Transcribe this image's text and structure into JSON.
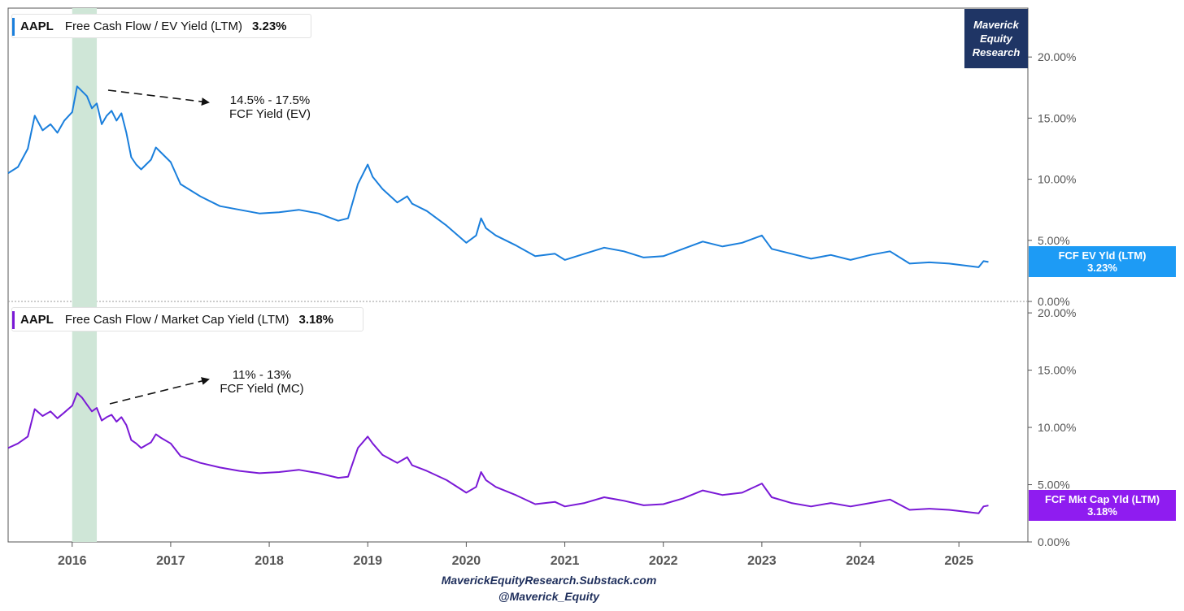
{
  "branding": {
    "line1": "Maverick",
    "line2": "Equity",
    "line3": "Research",
    "footer_site": "MaverickEquityResearch.Substack.com",
    "footer_handle": "@Maverick_Equity"
  },
  "colors": {
    "ev": "#1a7fdc",
    "mc": "#7a19d6",
    "highlight": "#cfe6d7",
    "brand": "#1f3565",
    "axis_text": "#555555"
  },
  "chart_data": [
    {
      "type": "line",
      "ticker": "AAPL",
      "title": "Free Cash Flow / EV Yield (LTM)",
      "last_value_label": "3.23%",
      "tag_name": "FCF EV Yld (LTM)",
      "tag_value": "3.23%",
      "annotation_line1": "14.5% - 17.5%",
      "annotation_line2": "FCF Yield (EV)",
      "ylim": [
        0,
        24
      ],
      "yticks": [
        0,
        5,
        10,
        15,
        20
      ],
      "ytick_labels": [
        "0.00%",
        "5.00%",
        "10.00%",
        "15.00%",
        "20.00%"
      ],
      "xlim": [
        2015.35,
        2025.7
      ],
      "highlight_range": [
        2016.0,
        2016.25
      ],
      "last_value": 3.23,
      "series": [
        {
          "x": [
            2015.35,
            2015.45,
            2015.55,
            2015.62,
            2015.7,
            2015.78,
            2015.85,
            2015.92,
            2016.0,
            2016.05,
            2016.1,
            2016.15,
            2016.2,
            2016.25,
            2016.3,
            2016.35,
            2016.4,
            2016.45,
            2016.5,
            2016.55,
            2016.6,
            2016.65,
            2016.7,
            2016.8,
            2016.85,
            2016.9,
            2017.0,
            2017.1,
            2017.3,
            2017.5,
            2017.7,
            2017.9,
            2018.1,
            2018.3,
            2018.5,
            2018.7,
            2018.8,
            2018.9,
            2019.0,
            2019.05,
            2019.15,
            2019.3,
            2019.4,
            2019.45,
            2019.6,
            2019.8,
            2020.0,
            2020.1,
            2020.15,
            2020.2,
            2020.3,
            2020.5,
            2020.7,
            2020.9,
            2021.0,
            2021.2,
            2021.4,
            2021.6,
            2021.8,
            2022.0,
            2022.2,
            2022.4,
            2022.6,
            2022.8,
            2023.0,
            2023.1,
            2023.3,
            2023.5,
            2023.7,
            2023.9,
            2024.1,
            2024.3,
            2024.5,
            2024.7,
            2024.9,
            2025.0,
            2025.1,
            2025.2,
            2025.25,
            2025.3
          ],
          "y": [
            10.5,
            11.0,
            12.5,
            15.2,
            14.0,
            14.5,
            13.8,
            14.8,
            15.5,
            17.6,
            17.2,
            16.8,
            15.8,
            16.2,
            14.5,
            15.2,
            15.6,
            14.8,
            15.4,
            13.8,
            11.8,
            11.2,
            10.8,
            11.6,
            12.6,
            12.2,
            11.4,
            9.6,
            8.6,
            7.8,
            7.5,
            7.2,
            7.3,
            7.5,
            7.2,
            6.6,
            6.8,
            9.6,
            11.2,
            10.2,
            9.2,
            8.1,
            8.6,
            8.0,
            7.4,
            6.2,
            4.8,
            5.4,
            6.8,
            6.0,
            5.4,
            4.6,
            3.7,
            3.9,
            3.4,
            3.9,
            4.4,
            4.1,
            3.6,
            3.7,
            4.3,
            4.9,
            4.5,
            4.8,
            5.4,
            4.3,
            3.9,
            3.5,
            3.8,
            3.4,
            3.8,
            4.1,
            3.1,
            3.2,
            3.1,
            3.0,
            2.9,
            2.8,
            3.3,
            3.23
          ]
        }
      ]
    },
    {
      "type": "line",
      "ticker": "AAPL",
      "title": "Free Cash Flow / Market Cap Yield (LTM)",
      "last_value_label": "3.18%",
      "tag_name": "FCF Mkt Cap Yld (LTM)",
      "tag_value": "3.18%",
      "annotation_line1": "11% - 13%",
      "annotation_line2": "FCF Yield (MC)",
      "ylim": [
        0,
        21
      ],
      "yticks": [
        0,
        5,
        10,
        15,
        20
      ],
      "ytick_labels": [
        "0.00%",
        "5.00%",
        "10.00%",
        "15.00%",
        "20.00%"
      ],
      "xlim": [
        2015.35,
        2025.7
      ],
      "highlight_range": [
        2016.0,
        2016.25
      ],
      "last_value": 3.18,
      "series": [
        {
          "x": [
            2015.35,
            2015.45,
            2015.55,
            2015.62,
            2015.7,
            2015.78,
            2015.85,
            2015.92,
            2016.0,
            2016.05,
            2016.1,
            2016.15,
            2016.2,
            2016.25,
            2016.3,
            2016.35,
            2016.4,
            2016.45,
            2016.5,
            2016.55,
            2016.6,
            2016.65,
            2016.7,
            2016.8,
            2016.85,
            2016.9,
            2017.0,
            2017.1,
            2017.3,
            2017.5,
            2017.7,
            2017.9,
            2018.1,
            2018.3,
            2018.5,
            2018.7,
            2018.8,
            2018.9,
            2019.0,
            2019.05,
            2019.15,
            2019.3,
            2019.4,
            2019.45,
            2019.6,
            2019.8,
            2020.0,
            2020.1,
            2020.15,
            2020.2,
            2020.3,
            2020.5,
            2020.7,
            2020.9,
            2021.0,
            2021.2,
            2021.4,
            2021.6,
            2021.8,
            2022.0,
            2022.2,
            2022.4,
            2022.6,
            2022.8,
            2023.0,
            2023.1,
            2023.3,
            2023.5,
            2023.7,
            2023.9,
            2024.1,
            2024.3,
            2024.5,
            2024.7,
            2024.9,
            2025.0,
            2025.1,
            2025.2,
            2025.25,
            2025.3
          ],
          "y": [
            8.2,
            8.6,
            9.2,
            11.6,
            11.0,
            11.4,
            10.8,
            11.3,
            11.9,
            13.0,
            12.6,
            12.0,
            11.4,
            11.7,
            10.6,
            10.9,
            11.1,
            10.5,
            10.9,
            10.2,
            8.9,
            8.6,
            8.2,
            8.7,
            9.4,
            9.1,
            8.6,
            7.5,
            6.9,
            6.5,
            6.2,
            6.0,
            6.1,
            6.3,
            6.0,
            5.6,
            5.7,
            8.2,
            9.2,
            8.6,
            7.6,
            6.9,
            7.4,
            6.7,
            6.2,
            5.4,
            4.3,
            4.8,
            6.1,
            5.4,
            4.8,
            4.1,
            3.3,
            3.5,
            3.1,
            3.4,
            3.9,
            3.6,
            3.2,
            3.3,
            3.8,
            4.5,
            4.1,
            4.3,
            5.1,
            3.9,
            3.4,
            3.1,
            3.4,
            3.1,
            3.4,
            3.7,
            2.8,
            2.9,
            2.8,
            2.7,
            2.6,
            2.5,
            3.1,
            3.18
          ]
        }
      ]
    }
  ],
  "x_axis": {
    "ticks": [
      2016,
      2017,
      2018,
      2019,
      2020,
      2021,
      2022,
      2023,
      2024,
      2025
    ],
    "labels": [
      "2016",
      "2017",
      "2018",
      "2019",
      "2020",
      "2021",
      "2022",
      "2023",
      "2024",
      "2025"
    ]
  }
}
